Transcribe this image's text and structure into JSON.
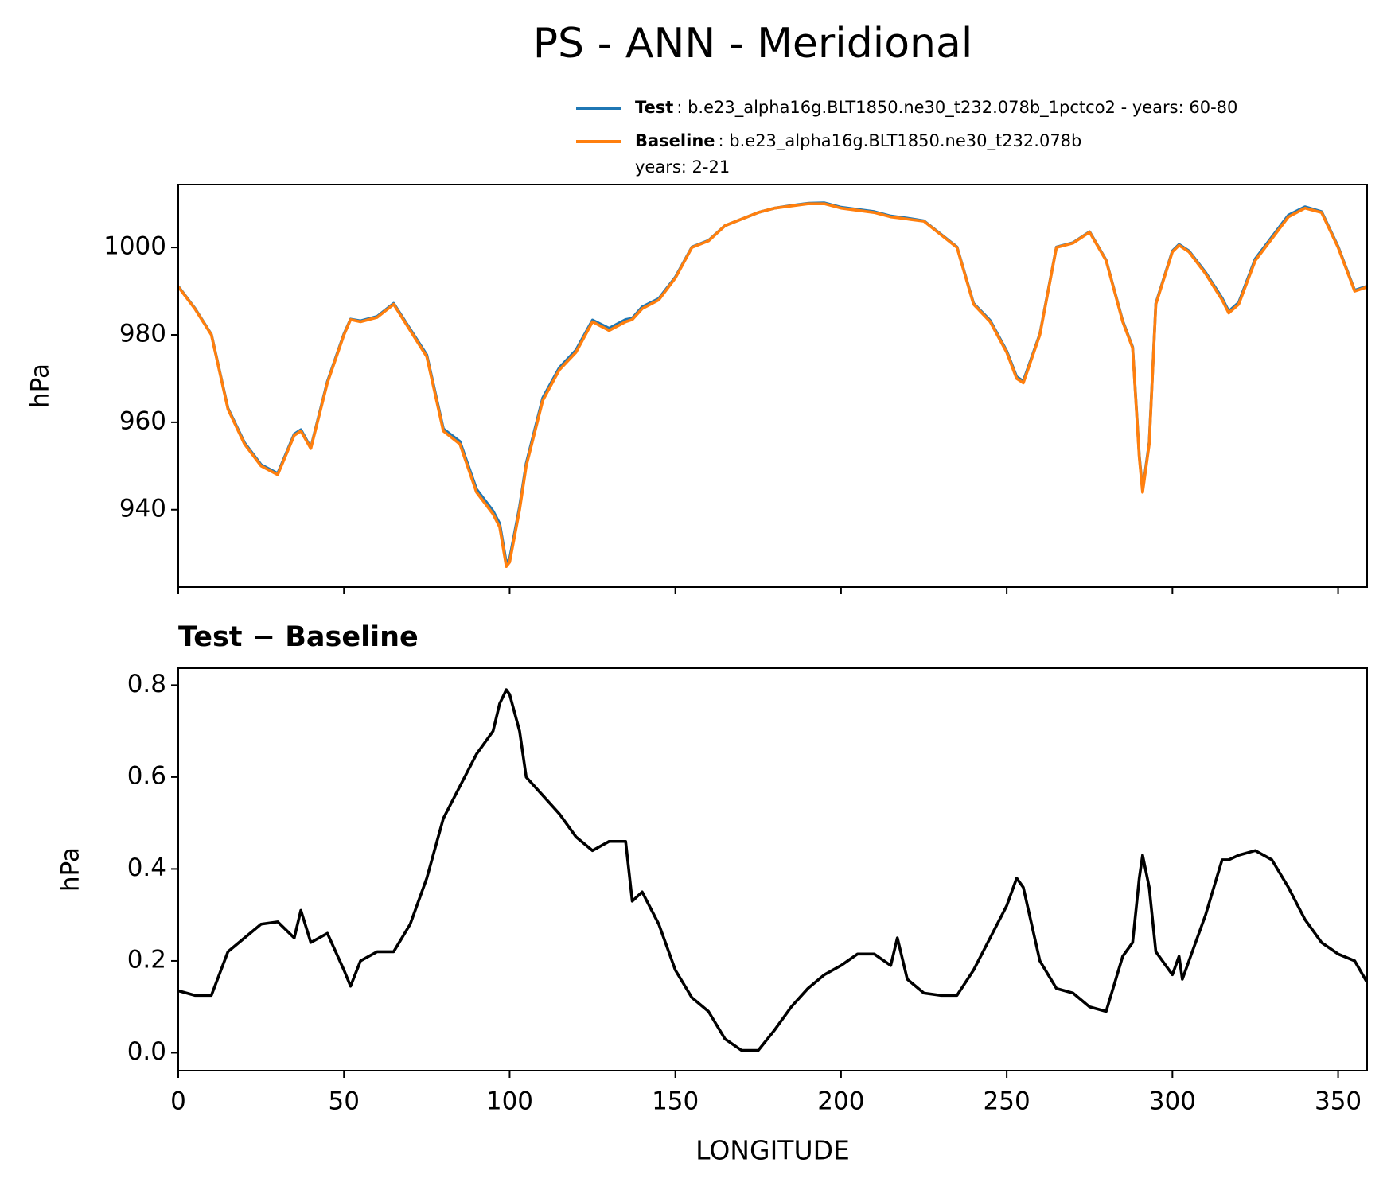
{
  "title": "PS - ANN - Meridional",
  "chart_data": [
    {
      "type": "line",
      "ylabel": "hPa",
      "x": [
        0,
        5,
        10,
        15,
        20,
        25,
        30,
        35,
        37,
        40,
        45,
        50,
        52,
        55,
        60,
        65,
        70,
        75,
        80,
        85,
        90,
        95,
        97,
        99,
        100,
        103,
        105,
        110,
        115,
        120,
        125,
        130,
        135,
        137,
        140,
        145,
        150,
        155,
        160,
        165,
        170,
        175,
        180,
        185,
        190,
        195,
        200,
        205,
        210,
        215,
        217,
        220,
        225,
        230,
        235,
        240,
        245,
        250,
        253,
        255,
        260,
        265,
        270,
        275,
        280,
        285,
        288,
        290,
        291,
        293,
        295,
        300,
        302,
        303,
        305,
        310,
        315,
        317,
        320,
        325,
        330,
        335,
        340,
        345,
        350,
        355,
        359
      ],
      "series": [
        {
          "name": "Test",
          "label_lines": [
            ": b.e23_alpha16g.BLT1850.ne30_t232.078b_1pctco2 - years: 60-80"
          ],
          "color": "#1f77b4",
          "values": [
            991.1,
            986.1,
            980.1,
            963.2,
            955.3,
            950.3,
            948.3,
            957.3,
            958.3,
            954.2,
            969.3,
            980.2,
            983.6,
            983.2,
            984.2,
            987.2,
            981.3,
            975.4,
            958.5,
            955.6,
            944.7,
            939.7,
            936.8,
            927.8,
            928.8,
            940.7,
            950.6,
            965.6,
            972.5,
            976.5,
            983.4,
            981.5,
            983.5,
            983.8,
            986.4,
            988.3,
            993.2,
            1000.1,
            1001.6,
            1005,
            1006.5,
            1008,
            1009,
            1009.6,
            1010.1,
            1010.2,
            1009.2,
            1008.7,
            1008.2,
            1007.2,
            1007,
            1006.7,
            1006.1,
            1003.1,
            1000.1,
            987.2,
            983.3,
            976.3,
            970.4,
            969.4,
            980.2,
            1000.1,
            1001.1,
            1003.6,
            997.1,
            983.2,
            977.2,
            952.4,
            944.4,
            955.4,
            987.2,
            999.2,
            1000.7,
            1000.2,
            999.2,
            994.3,
            988.4,
            985.4,
            987.4,
            997.4,
            1002.4,
            1007.4,
            1009.3,
            1008.2,
            1000.2,
            990.2,
            991.2
          ]
        },
        {
          "name": "Baseline",
          "label_lines": [
            ": b.e23_alpha16g.BLT1850.ne30_t232.078b",
            "years: 2-21"
          ],
          "color": "#ff7f0e",
          "values": [
            991,
            986,
            980,
            963,
            955,
            950,
            948,
            957,
            958,
            954,
            969,
            980,
            983.5,
            983,
            984,
            987,
            981,
            975,
            958,
            955,
            944,
            939,
            936,
            927,
            928,
            940,
            950,
            965,
            972,
            976,
            983,
            981,
            983,
            983.5,
            986,
            988,
            993,
            1000,
            1001.5,
            1005,
            1006.5,
            1008,
            1009,
            1009.5,
            1010,
            1010,
            1009,
            1008.5,
            1008,
            1007,
            1006.8,
            1006.5,
            1006,
            1003,
            1000,
            987,
            983,
            976,
            970,
            969,
            980,
            1000,
            1001,
            1003.5,
            997,
            983,
            977,
            952,
            944,
            955,
            987,
            999,
            1000.5,
            1000,
            999,
            994,
            988,
            985,
            987,
            997,
            1002,
            1007,
            1009,
            1008,
            1000,
            990,
            991
          ]
        }
      ],
      "xlim": [
        0,
        358.75
      ],
      "xticks": [
        0,
        50,
        100,
        150,
        200,
        250,
        300,
        350
      ],
      "show_xtick_labels": false,
      "ylim": [
        922.3,
        1014.4
      ],
      "yticks": [
        940,
        960,
        980,
        1000
      ]
    },
    {
      "type": "line",
      "title": "Test − Baseline",
      "xlabel": "LONGITUDE",
      "ylabel": "hPa",
      "x": [
        0,
        5,
        10,
        15,
        20,
        25,
        30,
        35,
        37,
        40,
        45,
        50,
        52,
        55,
        60,
        65,
        70,
        75,
        80,
        85,
        90,
        95,
        97,
        99,
        100,
        103,
        105,
        110,
        115,
        120,
        125,
        130,
        135,
        137,
        140,
        145,
        150,
        155,
        160,
        165,
        170,
        175,
        180,
        185,
        190,
        195,
        200,
        205,
        210,
        215,
        217,
        220,
        225,
        230,
        235,
        240,
        245,
        250,
        253,
        255,
        260,
        265,
        270,
        275,
        280,
        285,
        288,
        290,
        291,
        293,
        295,
        300,
        302,
        303,
        305,
        310,
        315,
        317,
        320,
        325,
        330,
        335,
        340,
        345,
        350,
        355,
        359
      ],
      "series": [
        {
          "color": "#000000",
          "values": [
            0.135,
            0.125,
            0.125,
            0.22,
            0.25,
            0.28,
            0.285,
            0.25,
            0.31,
            0.24,
            0.26,
            0.18,
            0.145,
            0.2,
            0.22,
            0.22,
            0.28,
            0.38,
            0.51,
            0.58,
            0.65,
            0.7,
            0.76,
            0.79,
            0.78,
            0.7,
            0.6,
            0.56,
            0.52,
            0.47,
            0.44,
            0.46,
            0.46,
            0.33,
            0.35,
            0.28,
            0.18,
            0.12,
            0.09,
            0.03,
            0.005,
            0.005,
            0.05,
            0.1,
            0.14,
            0.17,
            0.19,
            0.215,
            0.215,
            0.19,
            0.25,
            0.16,
            0.13,
            0.125,
            0.125,
            0.18,
            0.25,
            0.32,
            0.38,
            0.36,
            0.2,
            0.14,
            0.13,
            0.1,
            0.09,
            0.21,
            0.24,
            0.38,
            0.43,
            0.36,
            0.22,
            0.17,
            0.21,
            0.16,
            0.2,
            0.3,
            0.42,
            0.42,
            0.43,
            0.44,
            0.42,
            0.36,
            0.29,
            0.24,
            0.215,
            0.2,
            0.15
          ]
        }
      ],
      "xlim": [
        0,
        358.75
      ],
      "xticks": [
        0,
        50,
        100,
        150,
        200,
        250,
        300,
        350
      ],
      "show_xtick_labels": true,
      "ylim": [
        -0.039,
        0.837
      ],
      "yticks": [
        {
          "value": 0,
          "label": "0.0"
        },
        0.2,
        0.4,
        0.6,
        0.8
      ]
    }
  ]
}
